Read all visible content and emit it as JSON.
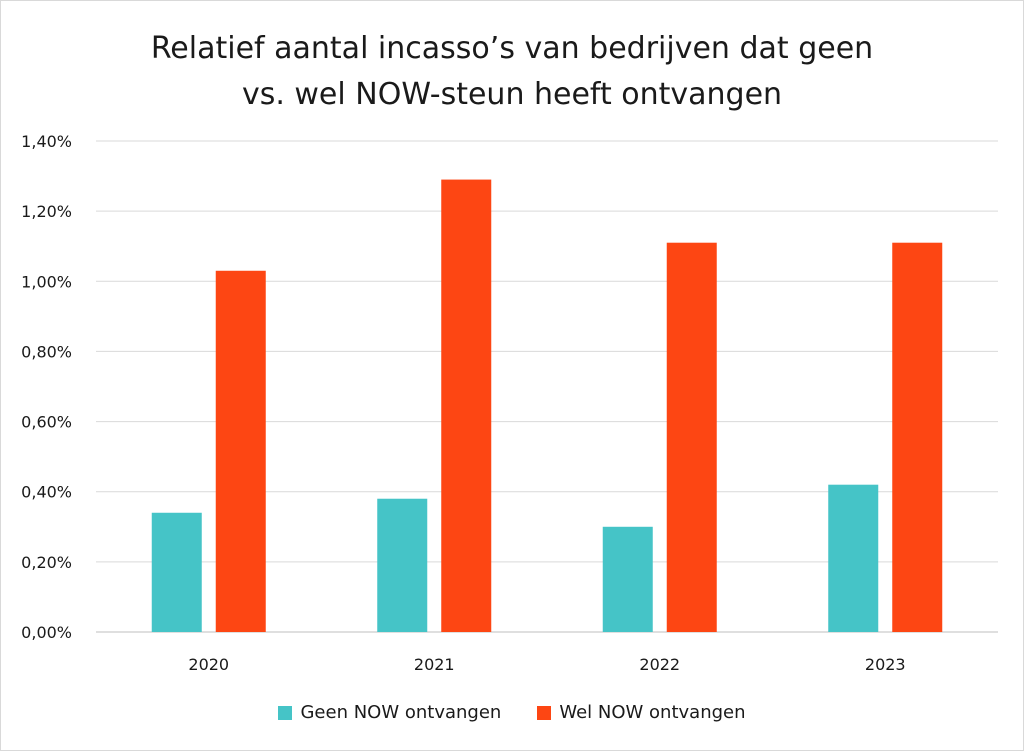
{
  "chart_data": {
    "type": "bar",
    "title_lines": [
      "Relatief aantal incasso’s van bedrijven dat geen",
      "vs. wel NOW-steun heeft ontvangen"
    ],
    "categories": [
      "2020",
      "2021",
      "2022",
      "2023"
    ],
    "series": [
      {
        "name": "Geen NOW ontvangen",
        "color": "#45c4c7",
        "values": [
          0.34,
          0.38,
          0.3,
          0.42
        ]
      },
      {
        "name": "Wel NOW ontvangen",
        "color": "#fd4613",
        "values": [
          1.03,
          1.29,
          1.11,
          1.11
        ]
      }
    ],
    "y_ticks": [
      "0,00%",
      "0,20%",
      "0,40%",
      "0,60%",
      "0,80%",
      "1,00%",
      "1,20%",
      "1,40%"
    ],
    "ylim": [
      0,
      1.4
    ],
    "y_unit": "%",
    "xlabel": "",
    "ylabel": "",
    "grid": true,
    "legend_position": "bottom"
  }
}
